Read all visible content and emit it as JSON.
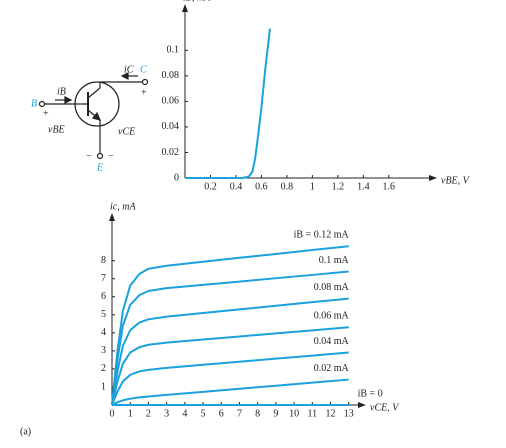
{
  "chart_data": [
    {
      "type": "line",
      "xlabel": "vBE, V",
      "ylabel": "iB, mA",
      "x": [
        0,
        0.45,
        0.5,
        0.53,
        0.55,
        0.57,
        0.6,
        0.63,
        0.667
      ],
      "series": [
        {
          "color": "#1ba1dc",
          "values": [
            0,
            0,
            0.001,
            0.005,
            0.015,
            0.03,
            0.055,
            0.085,
            0.117
          ]
        }
      ],
      "xlim": [
        0,
        1.9
      ],
      "ylim": [
        0,
        0.13
      ],
      "xticks": [
        0.2,
        0.4,
        0.6,
        0.8,
        1,
        1.2,
        1.4,
        1.6
      ],
      "yticks": [
        0,
        0.02,
        0.04,
        0.06,
        0.08,
        0.1
      ]
    },
    {
      "type": "line",
      "xlabel": "vCE, V",
      "ylabel": "ic, mA",
      "x": [
        0,
        0.3,
        0.6,
        1,
        1.5,
        2,
        3,
        5,
        7,
        9,
        11,
        13
      ],
      "series": [
        {
          "name": "iB = 0.12 mA",
          "color": "#1ba1dc",
          "values": [
            0,
            2.99,
            5.24,
            6.62,
            7.26,
            7.55,
            7.72,
            7.94,
            8.16,
            8.37,
            8.59,
            8.8
          ]
        },
        {
          "name": "0.1 mA",
          "color": "#1ba1dc",
          "values": [
            0,
            2.51,
            4.4,
            5.55,
            6.09,
            6.32,
            6.48,
            6.66,
            6.84,
            7.03,
            7.21,
            7.4
          ]
        },
        {
          "name": "0.08 mA",
          "color": "#1ba1dc",
          "values": [
            0,
            1.87,
            3.28,
            4.15,
            4.57,
            4.75,
            4.9,
            5.1,
            5.3,
            5.5,
            5.7,
            5.9
          ]
        },
        {
          "name": "0.06 mA",
          "color": "#1ba1dc",
          "values": [
            0,
            1.31,
            2.29,
            2.91,
            3.2,
            3.34,
            3.46,
            3.63,
            3.8,
            3.97,
            4.14,
            4.31
          ]
        },
        {
          "name": "0.04 mA",
          "color": "#1ba1dc",
          "values": [
            0,
            0.75,
            1.31,
            1.67,
            1.86,
            1.95,
            2.06,
            2.23,
            2.4,
            2.57,
            2.74,
            2.91
          ]
        },
        {
          "name": "0.02 mA",
          "color": "#1ba1dc",
          "values": [
            0,
            0.15,
            0.26,
            0.35,
            0.42,
            0.47,
            0.56,
            0.73,
            0.9,
            1.07,
            1.24,
            1.41
          ]
        },
        {
          "name": "iB = 0",
          "color": "#1ba1dc",
          "values": [
            0,
            0,
            0,
            0,
            0,
            0,
            0,
            0,
            0,
            0,
            0,
            0
          ]
        }
      ],
      "xlim": [
        0,
        13.4
      ],
      "ylim": [
        0,
        10.2
      ],
      "xticks": [
        0,
        1,
        2,
        3,
        4,
        5,
        6,
        7,
        8,
        9,
        10,
        11,
        12,
        13
      ],
      "yticks": [
        1,
        2,
        3,
        4,
        5,
        6,
        7,
        8
      ]
    }
  ],
  "circuit": {
    "base": "B",
    "base_current": "iB",
    "base_plus": "+",
    "vbe": "vBE",
    "vce": "vCE",
    "collector": "C",
    "collector_current": "iC",
    "collector_plus": "+",
    "emitter": "E",
    "emitter_minus_left": "−",
    "emitter_minus_right": "−"
  },
  "figure_label": "(a)"
}
